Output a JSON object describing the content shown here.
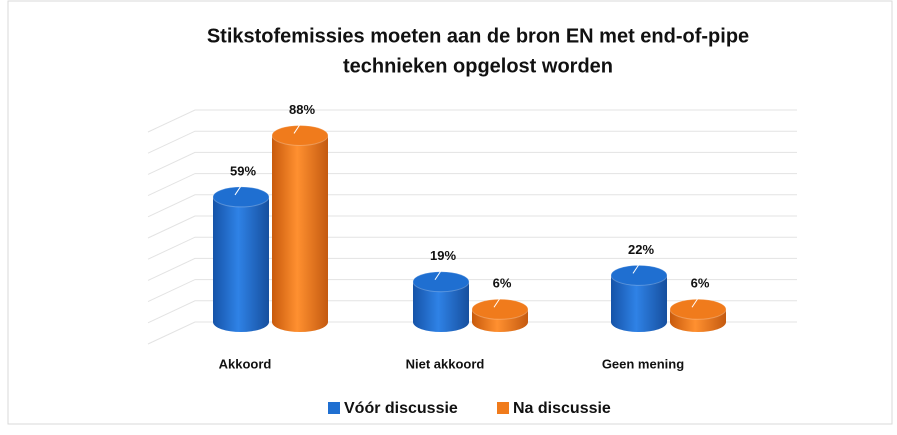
{
  "chart_data": {
    "type": "bar3d",
    "title": [
      "Stikstofemissies moeten aan de bron EN met end-of-pipe",
      "technieken opgelost worden"
    ],
    "categories": [
      "Akkoord",
      "Niet akkoord",
      "Geen mening"
    ],
    "series": [
      {
        "name": "Vóór discussie",
        "color": "#1f6fd1",
        "values": [
          59,
          19,
          22
        ],
        "value_labels": [
          "59%",
          "19%",
          "22%"
        ]
      },
      {
        "name": "Na discussie",
        "color": "#f07b1c",
        "values": [
          88,
          6,
          6
        ],
        "value_labels": [
          "88%",
          "6%",
          "6%"
        ]
      }
    ],
    "ylim": [
      0,
      100
    ],
    "yticks": [
      0,
      10,
      20,
      30,
      40,
      50,
      60,
      70,
      80,
      90,
      100
    ],
    "grid": true,
    "legend": "bottom"
  }
}
